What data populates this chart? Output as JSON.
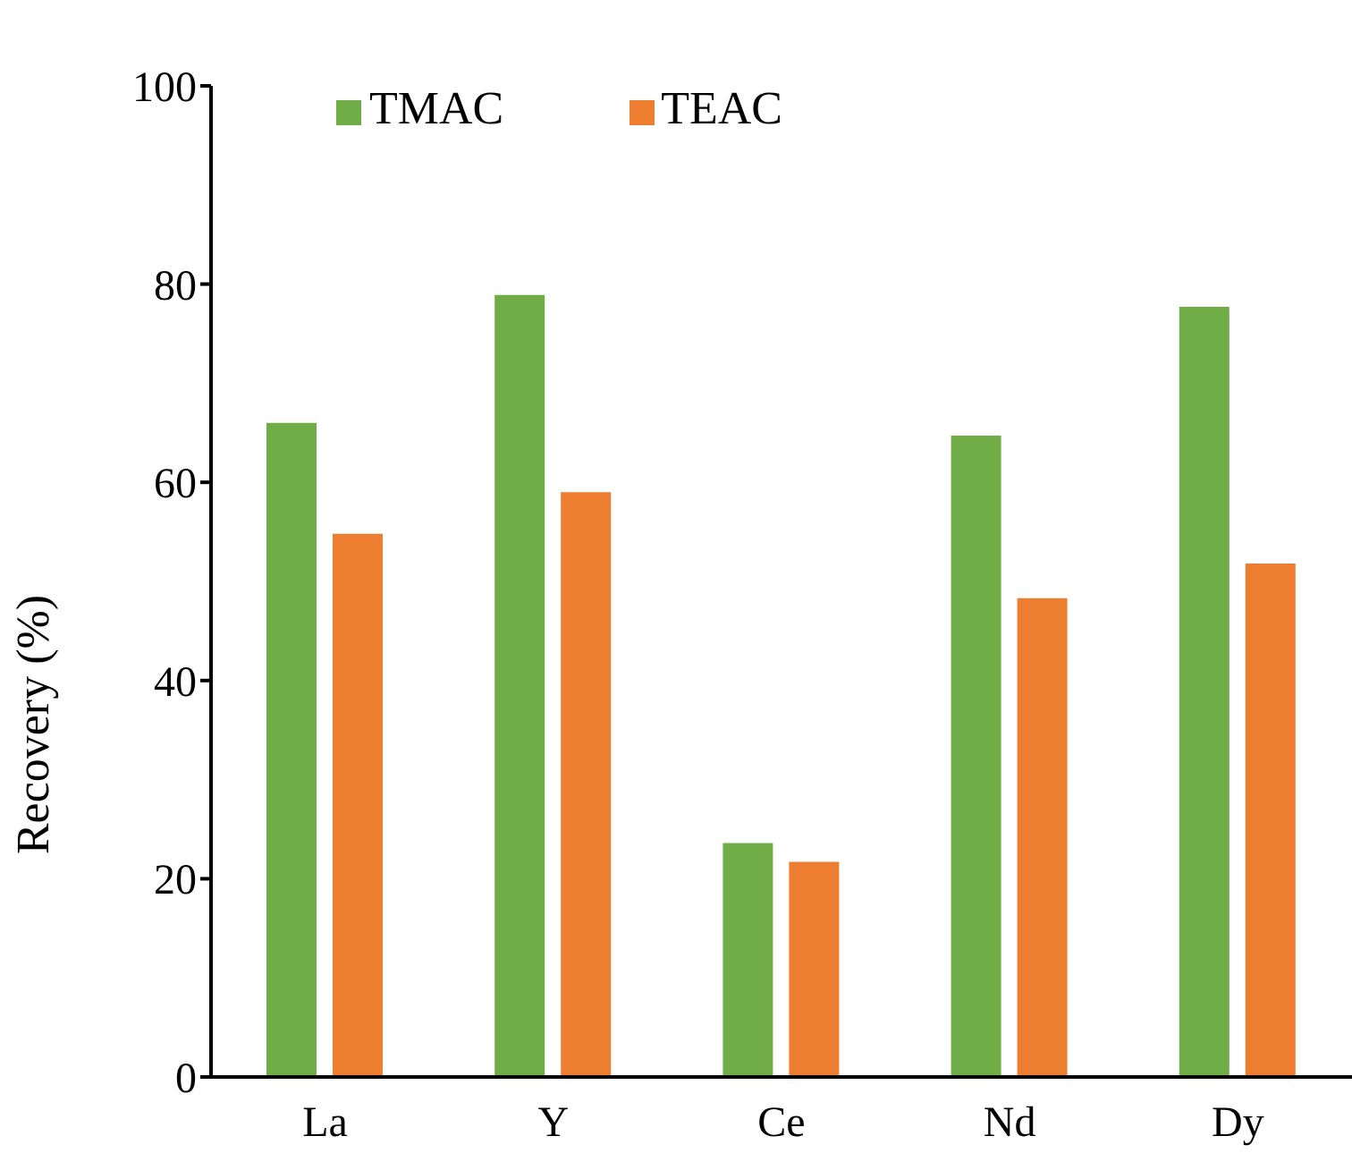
{
  "chart_data": {
    "type": "bar",
    "ylabel": "Recovery (%)",
    "categories": [
      "La",
      "Y",
      "Ce",
      "Nd",
      "Dy"
    ],
    "series": [
      {
        "name": "TMAC",
        "color": "#70ad47",
        "values": [
          66.0,
          78.9,
          23.6,
          64.7,
          77.7
        ]
      },
      {
        "name": "TEAC",
        "color": "#ed7d31",
        "values": [
          54.8,
          59.0,
          21.7,
          48.3,
          51.8
        ]
      }
    ],
    "ylim": [
      0,
      100
    ],
    "yticks": [
      0,
      20,
      40,
      60,
      80,
      100
    ],
    "grid": false,
    "legend": "top"
  }
}
